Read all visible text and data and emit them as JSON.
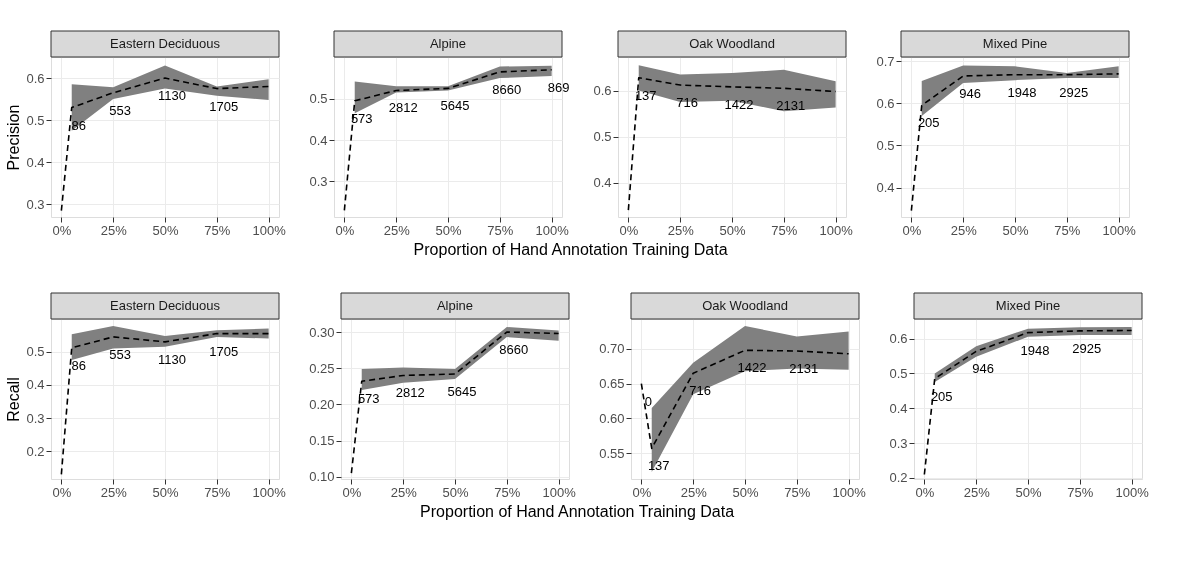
{
  "chart_data": [
    {
      "type": "line",
      "title": "Eastern Deciduous",
      "ylabel": "Precision",
      "xlim": [
        -5,
        105
      ],
      "ylim": [
        0.27,
        0.65
      ],
      "xticks": [
        {
          "value": 0,
          "label": "0%"
        },
        {
          "value": 25,
          "label": "25%"
        },
        {
          "value": 50,
          "label": "50%"
        },
        {
          "value": 75,
          "label": "75%"
        },
        {
          "value": 100,
          "label": "100%"
        }
      ],
      "yticks": [
        0.3,
        0.4,
        0.5,
        0.6
      ],
      "grid": true,
      "line_style": "dashed",
      "x": [
        0,
        5,
        25,
        50,
        75,
        100
      ],
      "series": [
        {
          "color": "#000000",
          "values": [
            0.285,
            0.53,
            0.565,
            0.6,
            0.575,
            0.58
          ],
          "lower": [
            null,
            0.475,
            0.55,
            0.575,
            0.558,
            0.548
          ],
          "upper": [
            null,
            0.585,
            0.578,
            0.63,
            0.58,
            0.597
          ]
        }
      ],
      "annotations": [
        {
          "text": "86",
          "x": 5,
          "y": 0.53
        },
        {
          "text": "553",
          "x": 25,
          "y": 0.565
        },
        {
          "text": "1130",
          "x": 50,
          "y": 0.6
        },
        {
          "text": "1705",
          "x": 75,
          "y": 0.575
        }
      ]
    },
    {
      "type": "line",
      "title": "Alpine",
      "xlabel": "Proportion of Hand Annotation Training Data",
      "xlim": [
        -5,
        105
      ],
      "ylim": [
        0.214,
        0.601
      ],
      "xticks": [
        {
          "value": 0,
          "label": "0%"
        },
        {
          "value": 25,
          "label": "25%"
        },
        {
          "value": 50,
          "label": "50%"
        },
        {
          "value": 75,
          "label": "75%"
        },
        {
          "value": 100,
          "label": "100%"
        }
      ],
      "yticks": [
        0.3,
        0.4,
        0.5
      ],
      "grid": true,
      "line_style": "dashed",
      "x": [
        0,
        5,
        25,
        50,
        75,
        100
      ],
      "series": [
        {
          "color": "#000000",
          "values": [
            0.23,
            0.495,
            0.52,
            0.525,
            0.565,
            0.57
          ],
          "lower": [
            null,
            0.465,
            0.515,
            0.52,
            0.55,
            0.555
          ],
          "upper": [
            null,
            0.542,
            0.53,
            0.53,
            0.578,
            0.58
          ]
        }
      ],
      "annotations": [
        {
          "text": "573",
          "x": 5,
          "y": 0.495
        },
        {
          "text": "2812",
          "x": 25,
          "y": 0.52
        },
        {
          "text": "5645",
          "x": 50,
          "y": 0.525
        },
        {
          "text": "8660",
          "x": 75,
          "y": 0.565
        },
        {
          "text": "869",
          "x": 100,
          "y": 0.57
        }
      ]
    },
    {
      "type": "line",
      "title": "Oak Woodland",
      "xlim": [
        -5,
        105
      ],
      "ylim": [
        0.325,
        0.673
      ],
      "xticks": [
        {
          "value": 0,
          "label": "0%"
        },
        {
          "value": 25,
          "label": "25%"
        },
        {
          "value": 50,
          "label": "50%"
        },
        {
          "value": 75,
          "label": "75%"
        },
        {
          "value": 100,
          "label": "100%"
        }
      ],
      "yticks": [
        0.4,
        0.5,
        0.6
      ],
      "grid": true,
      "line_style": "dashed",
      "x": [
        0,
        5,
        25,
        50,
        75,
        100
      ],
      "series": [
        {
          "color": "#000000",
          "values": [
            0.34,
            0.628,
            0.612,
            0.608,
            0.605,
            0.598
          ],
          "lower": [
            null,
            0.6,
            0.575,
            0.578,
            0.555,
            0.563
          ],
          "upper": [
            null,
            0.655,
            0.635,
            0.638,
            0.645,
            0.62
          ]
        }
      ],
      "annotations": [
        {
          "text": "137",
          "x": 5,
          "y": 0.628
        },
        {
          "text": "716",
          "x": 25,
          "y": 0.612
        },
        {
          "text": "1422",
          "x": 50,
          "y": 0.608
        },
        {
          "text": "2131",
          "x": 75,
          "y": 0.605
        }
      ]
    },
    {
      "type": "line",
      "title": "Mixed Pine",
      "xlim": [
        -5,
        105
      ],
      "ylim": [
        0.33,
        0.71
      ],
      "xticks": [
        {
          "value": 0,
          "label": "0%"
        },
        {
          "value": 25,
          "label": "25%"
        },
        {
          "value": 50,
          "label": "50%"
        },
        {
          "value": 75,
          "label": "75%"
        },
        {
          "value": 100,
          "label": "100%"
        }
      ],
      "yticks": [
        0.4,
        0.5,
        0.6,
        0.7
      ],
      "grid": true,
      "line_style": "dashed",
      "x": [
        0,
        5,
        25,
        50,
        75,
        100
      ],
      "series": [
        {
          "color": "#000000",
          "values": [
            0.345,
            0.595,
            0.665,
            0.668,
            0.668,
            0.67
          ],
          "lower": [
            null,
            0.57,
            0.648,
            0.655,
            0.66,
            0.66
          ],
          "upper": [
            null,
            0.653,
            0.69,
            0.688,
            0.672,
            0.688
          ]
        }
      ],
      "annotations": [
        {
          "text": "205",
          "x": 5,
          "y": 0.595
        },
        {
          "text": "946",
          "x": 25,
          "y": 0.665
        },
        {
          "text": "1948",
          "x": 50,
          "y": 0.668
        },
        {
          "text": "2925",
          "x": 75,
          "y": 0.668
        }
      ]
    },
    {
      "type": "line",
      "title": "Eastern Deciduous",
      "ylabel": "Recall",
      "xlim": [
        -5,
        105
      ],
      "ylim": [
        0.116,
        0.599
      ],
      "xticks": [
        {
          "value": 0,
          "label": "0%"
        },
        {
          "value": 25,
          "label": "25%"
        },
        {
          "value": 50,
          "label": "50%"
        },
        {
          "value": 75,
          "label": "75%"
        },
        {
          "value": 100,
          "label": "100%"
        }
      ],
      "yticks": [
        0.2,
        0.3,
        0.4,
        0.5
      ],
      "grid": true,
      "line_style": "dashed",
      "x": [
        0,
        5,
        25,
        50,
        75,
        100
      ],
      "series": [
        {
          "color": "#000000",
          "values": [
            0.13,
            0.512,
            0.545,
            0.53,
            0.555,
            0.555
          ],
          "lower": [
            null,
            0.475,
            0.51,
            0.515,
            0.545,
            0.54
          ],
          "upper": [
            null,
            0.553,
            0.578,
            0.548,
            0.565,
            0.57
          ]
        }
      ],
      "annotations": [
        {
          "text": "86",
          "x": 5,
          "y": 0.512
        },
        {
          "text": "553",
          "x": 25,
          "y": 0.545
        },
        {
          "text": "1130",
          "x": 50,
          "y": 0.53
        },
        {
          "text": "1705",
          "x": 75,
          "y": 0.555
        }
      ]
    },
    {
      "type": "line",
      "title": "Alpine",
      "xlabel": "Proportion of Hand Annotation Training Data",
      "xlim": [
        -5,
        105
      ],
      "ylim": [
        0.097,
        0.318
      ],
      "xticks": [
        {
          "value": 0,
          "label": "0%"
        },
        {
          "value": 25,
          "label": "25%"
        },
        {
          "value": 50,
          "label": "50%"
        },
        {
          "value": 75,
          "label": "75%"
        },
        {
          "value": 100,
          "label": "100%"
        }
      ],
      "yticks": [
        {
          "value": 0.1,
          "label": "0.10"
        },
        0.15,
        {
          "value": 0.2,
          "label": "0.20"
        },
        0.25,
        {
          "value": 0.3,
          "label": "0.30"
        }
      ],
      "grid": true,
      "line_style": "dashed",
      "x": [
        0,
        5,
        25,
        50,
        75,
        100
      ],
      "series": [
        {
          "color": "#000000",
          "values": [
            0.105,
            0.232,
            0.24,
            0.242,
            0.3,
            0.298
          ],
          "lower": [
            null,
            0.22,
            0.23,
            0.235,
            0.293,
            0.288
          ],
          "upper": [
            null,
            0.249,
            0.251,
            0.249,
            0.307,
            0.302
          ]
        }
      ],
      "annotations": [
        {
          "text": "573",
          "x": 5,
          "y": 0.232
        },
        {
          "text": "2812",
          "x": 25,
          "y": 0.24
        },
        {
          "text": "5645",
          "x": 50,
          "y": 0.242
        },
        {
          "text": "8660",
          "x": 75,
          "y": 0.3
        }
      ]
    },
    {
      "type": "line",
      "title": "Oak Woodland",
      "xlim": [
        -5,
        105
      ],
      "ylim": [
        0.513,
        0.743
      ],
      "xticks": [
        {
          "value": 0,
          "label": "0%"
        },
        {
          "value": 25,
          "label": "25%"
        },
        {
          "value": 50,
          "label": "50%"
        },
        {
          "value": 75,
          "label": "75%"
        },
        {
          "value": 100,
          "label": "100%"
        }
      ],
      "yticks": [
        0.55,
        {
          "value": 0.6,
          "label": "0.60"
        },
        0.65,
        {
          "value": 0.7,
          "label": "0.70"
        }
      ],
      "grid": true,
      "line_style": "dashed",
      "x": [
        0,
        5,
        25,
        50,
        75,
        100
      ],
      "series": [
        {
          "color": "#000000",
          "values": [
            0.65,
            0.557,
            0.665,
            0.698,
            0.697,
            0.693
          ],
          "lower": [
            null,
            0.523,
            0.635,
            0.668,
            0.672,
            0.67
          ],
          "upper": [
            null,
            0.615,
            0.68,
            0.733,
            0.718,
            0.725
          ]
        }
      ],
      "annotations": [
        {
          "text": "0",
          "x": 0,
          "y": 0.65
        },
        {
          "text": "137",
          "x": 5,
          "y": 0.557
        },
        {
          "text": "716",
          "x": 25,
          "y": 0.665
        },
        {
          "text": "1422",
          "x": 50,
          "y": 0.698
        },
        {
          "text": "2131",
          "x": 75,
          "y": 0.697
        }
      ]
    },
    {
      "type": "line",
      "title": "Mixed Pine",
      "xlim": [
        -5,
        105
      ],
      "ylim": [
        0.197,
        0.656
      ],
      "xticks": [
        {
          "value": 0,
          "label": "0%"
        },
        {
          "value": 25,
          "label": "25%"
        },
        {
          "value": 50,
          "label": "50%"
        },
        {
          "value": 75,
          "label": "75%"
        },
        {
          "value": 100,
          "label": "100%"
        }
      ],
      "yticks": [
        0.2,
        0.3,
        0.4,
        0.5,
        0.6
      ],
      "grid": true,
      "line_style": "dashed",
      "x": [
        0,
        5,
        25,
        50,
        75,
        100
      ],
      "series": [
        {
          "color": "#000000",
          "values": [
            0.21,
            0.485,
            0.563,
            0.617,
            0.622,
            0.623
          ],
          "lower": [
            null,
            0.475,
            0.548,
            0.605,
            0.61,
            0.61
          ],
          "upper": [
            null,
            0.5,
            0.578,
            0.628,
            0.632,
            0.633
          ]
        }
      ],
      "annotations": [
        {
          "text": "205",
          "x": 5,
          "y": 0.485
        },
        {
          "text": "946",
          "x": 25,
          "y": 0.563
        },
        {
          "text": "1948",
          "x": 50,
          "y": 0.617
        },
        {
          "text": "2925",
          "x": 75,
          "y": 0.622
        }
      ]
    }
  ]
}
